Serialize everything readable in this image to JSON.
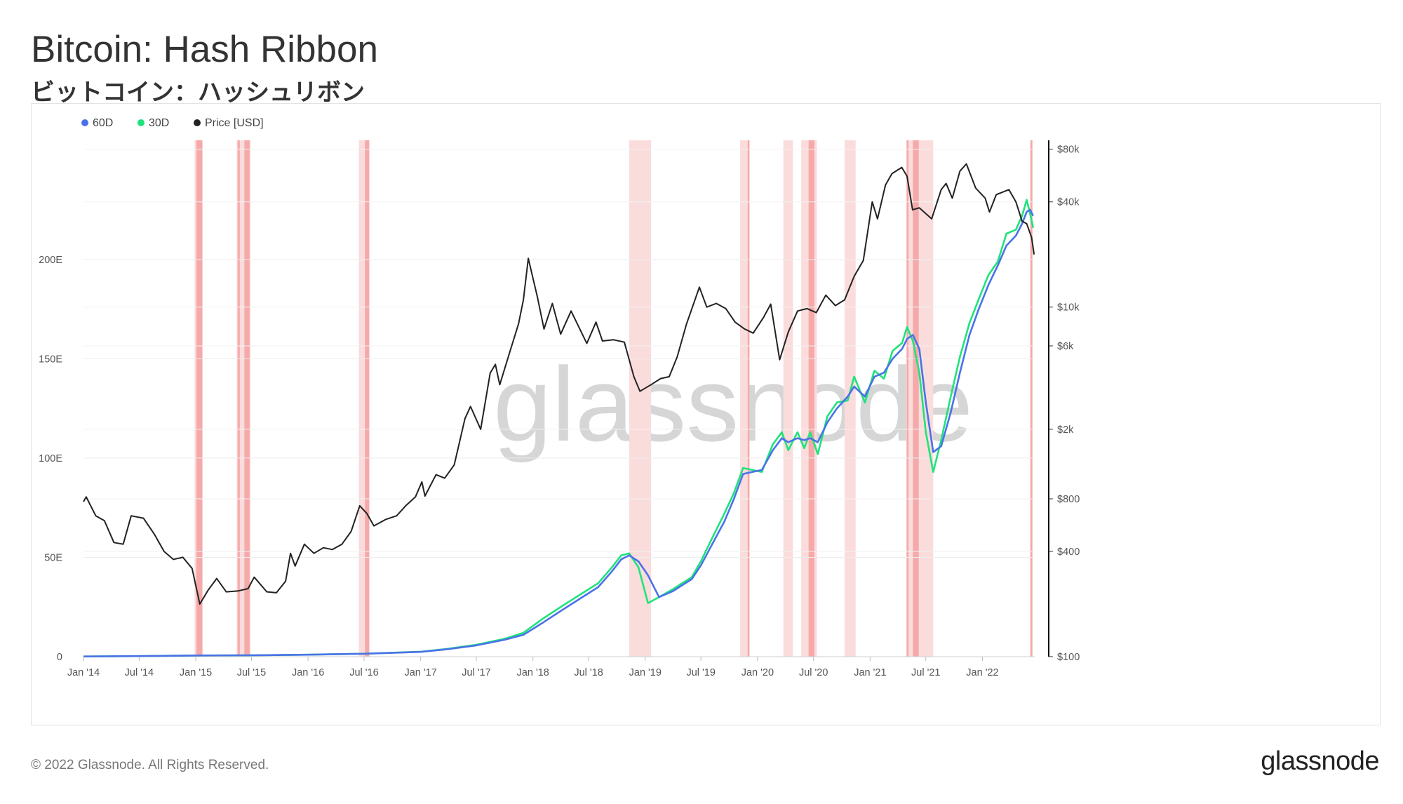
{
  "header": {
    "title": "Bitcoin: Hash Ribbon",
    "subtitle": "ビットコイン：ハッシュリボン"
  },
  "footer": {
    "copyright": "© 2022 Glassnode. All Rights Reserved.",
    "logo": "glassnode"
  },
  "watermark": "glassnode",
  "colors": {
    "series_60d": "#4a72e8",
    "series_30d": "#1fe37a",
    "price": "#222222",
    "band_strong": "#f5a9a9",
    "band_light": "#fbdcdc"
  },
  "chart_data": {
    "type": "line",
    "title": "Bitcoin: Hash Ribbon",
    "legend": [
      {
        "name": "60D",
        "color": "#4a72e8"
      },
      {
        "name": "30D",
        "color": "#1fe37a"
      },
      {
        "name": "Price [USD]",
        "color": "#222222"
      }
    ],
    "legend_position": "top-left",
    "grid": true,
    "x_ticks": [
      "Jan '14",
      "Jul '14",
      "Jan '15",
      "Jul '15",
      "Jan '16",
      "Jul '16",
      "Jan '17",
      "Jul '17",
      "Jan '18",
      "Jul '18",
      "Jan '19",
      "Jul '19",
      "Jan '20",
      "Jul '20",
      "Jan '21",
      "Jul '21",
      "Jan '22"
    ],
    "xlim": [
      "2014-01-01",
      "2022-06-20"
    ],
    "left_axis": {
      "label": "",
      "ticks": [
        "0",
        "50E",
        "100E",
        "150E",
        "200E"
      ],
      "ylim": [
        0,
        260
      ]
    },
    "right_axis": {
      "label": "",
      "scale": "log",
      "ticks": [
        "$100",
        "$400",
        "$800",
        "$2k",
        "$6k",
        "$10k",
        "$40k",
        "$80k"
      ],
      "ylim": [
        100,
        90000
      ]
    },
    "capitulation_bands": [
      {
        "start": "2014-12-28",
        "end": "2015-01-24",
        "strong": [
          "2015-01-03",
          "2015-01-22"
        ]
      },
      {
        "start": "2015-05-14",
        "end": "2015-06-28",
        "strong": [
          "2015-05-17",
          "2015-05-24",
          "2015-06-08",
          "2015-06-25"
        ]
      },
      {
        "start": "2016-06-14",
        "end": "2016-07-20",
        "strong": [
          "2016-07-04",
          "2016-07-17"
        ]
      },
      {
        "start": "2018-11-10",
        "end": "2019-01-20"
      },
      {
        "start": "2019-11-05",
        "end": "2019-12-06",
        "strong": [
          "2019-11-30",
          "2019-12-04"
        ]
      },
      {
        "start": "2020-03-25",
        "end": "2020-04-25"
      },
      {
        "start": "2020-05-22",
        "end": "2020-07-12",
        "strong": [
          "2020-06-15",
          "2020-07-04"
        ]
      },
      {
        "start": "2020-10-10",
        "end": "2020-11-15"
      },
      {
        "start": "2021-04-28",
        "end": "2021-07-25",
        "strong": [
          "2021-04-30",
          "2021-05-05",
          "2021-05-20",
          "2021-06-08"
        ]
      },
      {
        "start": "2022-06-05",
        "end": "2022-06-14",
        "strong": [
          "2022-06-06",
          "2022-06-12"
        ]
      }
    ],
    "series": [
      {
        "name": "30D",
        "axis": "left",
        "x": [
          "2014-01-01",
          "2014-07-01",
          "2015-01-01",
          "2015-07-01",
          "2016-01-01",
          "2016-07-01",
          "2017-01-01",
          "2017-04-01",
          "2017-07-01",
          "2017-10-01",
          "2017-12-01",
          "2018-02-01",
          "2018-04-01",
          "2018-06-01",
          "2018-08-01",
          "2018-09-15",
          "2018-10-15",
          "2018-11-10",
          "2018-12-10",
          "2019-01-10",
          "2019-02-15",
          "2019-04-01",
          "2019-05-01",
          "2019-06-01",
          "2019-07-01",
          "2019-08-01",
          "2019-09-15",
          "2019-10-15",
          "2019-11-15",
          "2019-12-15",
          "2020-01-15",
          "2020-02-20",
          "2020-03-20",
          "2020-04-10",
          "2020-05-10",
          "2020-06-01",
          "2020-06-20",
          "2020-07-15",
          "2020-08-15",
          "2020-09-15",
          "2020-10-20",
          "2020-11-10",
          "2020-12-15",
          "2021-01-15",
          "2021-02-15",
          "2021-03-15",
          "2021-04-15",
          "2021-05-01",
          "2021-05-20",
          "2021-06-10",
          "2021-07-01",
          "2021-07-25",
          "2021-08-20",
          "2021-09-20",
          "2021-10-20",
          "2021-11-20",
          "2021-12-20",
          "2022-01-20",
          "2022-02-20",
          "2022-03-20",
          "2022-04-20",
          "2022-05-10",
          "2022-05-25",
          "2022-06-05",
          "2022-06-15"
        ],
        "values": [
          0.1,
          0.3,
          0.6,
          0.7,
          1.0,
          1.5,
          2.5,
          4,
          6,
          9,
          12,
          19,
          25,
          31,
          37,
          45,
          51,
          52,
          45,
          27,
          30,
          34,
          37,
          40,
          48,
          58,
          72,
          82,
          95,
          94,
          93,
          107,
          113,
          104,
          113,
          105,
          113,
          102,
          121,
          128,
          129,
          141,
          128,
          144,
          140,
          154,
          158,
          166,
          159,
          143,
          113,
          93,
          109,
          131,
          151,
          168,
          180,
          192,
          199,
          213,
          215,
          222,
          230,
          223,
          216
        ],
        "color": "#1fe37a"
      },
      {
        "name": "60D",
        "axis": "left",
        "x": [
          "2014-01-01",
          "2014-07-01",
          "2015-01-01",
          "2015-07-01",
          "2016-01-01",
          "2016-07-01",
          "2017-01-01",
          "2017-04-01",
          "2017-07-01",
          "2017-10-01",
          "2017-12-01",
          "2018-02-01",
          "2018-04-01",
          "2018-06-01",
          "2018-08-01",
          "2018-09-15",
          "2018-10-15",
          "2018-11-10",
          "2018-12-10",
          "2019-01-10",
          "2019-02-15",
          "2019-04-01",
          "2019-05-01",
          "2019-06-01",
          "2019-07-01",
          "2019-08-01",
          "2019-09-15",
          "2019-10-15",
          "2019-11-15",
          "2019-12-15",
          "2020-01-15",
          "2020-02-20",
          "2020-03-20",
          "2020-04-10",
          "2020-05-10",
          "2020-06-01",
          "2020-06-20",
          "2020-07-15",
          "2020-08-15",
          "2020-09-15",
          "2020-10-20",
          "2020-11-10",
          "2020-12-15",
          "2021-01-15",
          "2021-02-15",
          "2021-03-15",
          "2021-04-15",
          "2021-05-01",
          "2021-05-20",
          "2021-06-10",
          "2021-07-01",
          "2021-07-25",
          "2021-08-20",
          "2021-09-20",
          "2021-10-20",
          "2021-11-20",
          "2021-12-20",
          "2022-01-20",
          "2022-02-20",
          "2022-03-20",
          "2022-04-20",
          "2022-05-10",
          "2022-05-25",
          "2022-06-05",
          "2022-06-15"
        ],
        "values": [
          0.1,
          0.3,
          0.6,
          0.7,
          1.0,
          1.5,
          2.4,
          3.8,
          5.7,
          8.5,
          11,
          17,
          23,
          29,
          35,
          43,
          49,
          51,
          48,
          41,
          30,
          33,
          36,
          39,
          46,
          55,
          68,
          79,
          92,
          93,
          94,
          104,
          110,
          108,
          110,
          109,
          110,
          108,
          118,
          125,
          131,
          136,
          131,
          141,
          143,
          150,
          155,
          160,
          162,
          155,
          128,
          103,
          106,
          123,
          143,
          162,
          175,
          187,
          197,
          207,
          212,
          218,
          224,
          225,
          222
        ],
        "color": "#4a72e8"
      },
      {
        "name": "Price [USD]",
        "axis": "right",
        "x": [
          "2014-01-01",
          "2014-01-10",
          "2014-02-10",
          "2014-03-10",
          "2014-04-10",
          "2014-05-10",
          "2014-06-05",
          "2014-07-15",
          "2014-08-20",
          "2014-09-20",
          "2014-10-20",
          "2014-11-20",
          "2014-12-20",
          "2015-01-14",
          "2015-02-10",
          "2015-03-10",
          "2015-04-10",
          "2015-05-20",
          "2015-06-20",
          "2015-07-10",
          "2015-08-20",
          "2015-09-20",
          "2015-10-20",
          "2015-11-05",
          "2015-11-20",
          "2015-12-20",
          "2016-01-20",
          "2016-02-20",
          "2016-03-20",
          "2016-04-20",
          "2016-05-20",
          "2016-06-17",
          "2016-07-10",
          "2016-08-02",
          "2016-09-10",
          "2016-10-15",
          "2016-11-15",
          "2016-12-15",
          "2017-01-05",
          "2017-01-15",
          "2017-02-20",
          "2017-03-20",
          "2017-04-20",
          "2017-05-25",
          "2017-06-12",
          "2017-07-15",
          "2017-08-15",
          "2017-09-01",
          "2017-09-15",
          "2017-10-20",
          "2017-11-15",
          "2017-12-01",
          "2017-12-17",
          "2018-01-15",
          "2018-02-06",
          "2018-03-05",
          "2018-04-01",
          "2018-05-05",
          "2018-06-25",
          "2018-07-25",
          "2018-08-15",
          "2018-09-20",
          "2018-10-25",
          "2018-11-25",
          "2018-12-15",
          "2019-01-20",
          "2019-02-20",
          "2019-03-20",
          "2019-04-15",
          "2019-05-15",
          "2019-06-26",
          "2019-07-20",
          "2019-08-20",
          "2019-09-20",
          "2019-10-20",
          "2019-11-20",
          "2019-12-18",
          "2020-01-20",
          "2020-02-13",
          "2020-03-13",
          "2020-04-10",
          "2020-05-10",
          "2020-06-10",
          "2020-07-10",
          "2020-08-10",
          "2020-09-10",
          "2020-10-10",
          "2020-11-10",
          "2020-12-10",
          "2021-01-08",
          "2021-01-25",
          "2021-02-20",
          "2021-03-13",
          "2021-04-14",
          "2021-05-01",
          "2021-05-19",
          "2021-06-10",
          "2021-07-20",
          "2021-08-20",
          "2021-09-05",
          "2021-09-25",
          "2021-10-20",
          "2021-11-10",
          "2021-12-10",
          "2022-01-10",
          "2022-01-24",
          "2022-02-15",
          "2022-03-28",
          "2022-04-20",
          "2022-05-10",
          "2022-05-25",
          "2022-06-10",
          "2022-06-18"
        ],
        "values": [
          770,
          820,
          640,
          600,
          450,
          440,
          640,
          620,
          500,
          400,
          360,
          370,
          320,
          200,
          240,
          280,
          235,
          238,
          245,
          285,
          235,
          232,
          270,
          390,
          330,
          440,
          390,
          420,
          410,
          440,
          520,
          730,
          660,
          560,
          610,
          640,
          735,
          820,
          1000,
          830,
          1100,
          1050,
          1250,
          2300,
          2700,
          2000,
          4200,
          4700,
          3600,
          5700,
          8000,
          11000,
          19000,
          11500,
          7500,
          10500,
          7000,
          9500,
          6200,
          8200,
          6400,
          6500,
          6300,
          4000,
          3300,
          3600,
          3900,
          4000,
          5200,
          8000,
          13000,
          10000,
          10500,
          9800,
          8200,
          7500,
          7100,
          8700,
          10400,
          5000,
          7200,
          9500,
          9800,
          9300,
          11700,
          10200,
          11000,
          15000,
          18500,
          40000,
          32000,
          50000,
          58000,
          63000,
          56000,
          36000,
          37000,
          32000,
          47000,
          51000,
          42000,
          60000,
          66000,
          48000,
          42000,
          35000,
          44000,
          47000,
          40000,
          31000,
          30000,
          25000,
          20000
        ]
      }
    ]
  }
}
